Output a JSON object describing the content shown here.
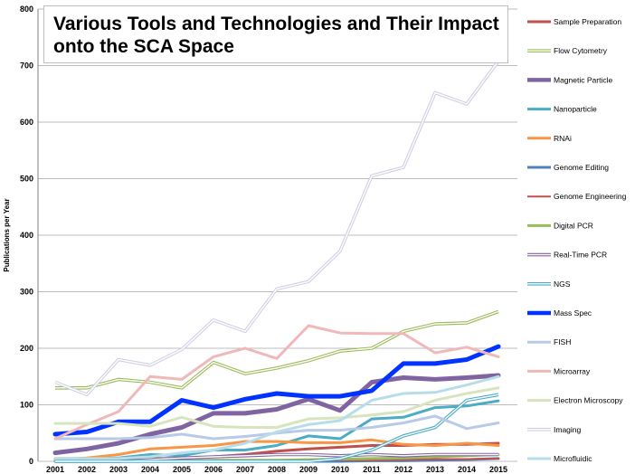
{
  "chart_data": {
    "type": "line",
    "title": "Various Tools and Technologies and Their Impact onto the SCA Space",
    "xlabel": "",
    "ylabel": "Publications per Year",
    "ylim": [
      0,
      800
    ],
    "yticks": [
      0,
      100,
      200,
      300,
      400,
      500,
      600,
      700,
      800
    ],
    "x": [
      "2001",
      "2002",
      "2003",
      "2004",
      "2005",
      "2006",
      "2007",
      "2008",
      "2009",
      "2010",
      "2011",
      "2012",
      "2013",
      "2014",
      "2015"
    ],
    "grid": true,
    "legend_position": "right",
    "series": [
      {
        "name": "Sample Preparation",
        "color": "#c0504d",
        "style": "solid",
        "width": 3,
        "values": [
          2,
          2,
          3,
          5,
          5,
          8,
          12,
          18,
          22,
          25,
          28,
          28,
          30,
          30,
          32
        ]
      },
      {
        "name": "Flow Cytometry",
        "color": "#9bbb59",
        "style": "double",
        "width": 1.2,
        "values": [
          130,
          130,
          145,
          140,
          130,
          175,
          155,
          165,
          178,
          195,
          200,
          230,
          243,
          245,
          265
        ]
      },
      {
        "name": "Magnetic Particle",
        "color": "#8064a2",
        "style": "solid",
        "width": 5,
        "values": [
          15,
          22,
          32,
          48,
          60,
          85,
          85,
          92,
          110,
          90,
          140,
          148,
          145,
          148,
          152
        ]
      },
      {
        "name": "Nanoparticle",
        "color": "#4bacc6",
        "style": "solid",
        "width": 3,
        "values": [
          5,
          5,
          6,
          12,
          10,
          20,
          20,
          28,
          45,
          40,
          75,
          78,
          95,
          98,
          107
        ]
      },
      {
        "name": "RNAi",
        "color": "#f79646",
        "style": "solid",
        "width": 3,
        "values": [
          3,
          6,
          12,
          22,
          25,
          28,
          35,
          35,
          33,
          33,
          38,
          30,
          28,
          32,
          28
        ]
      },
      {
        "name": "Genome Editing",
        "color": "#4f81bd",
        "style": "solid",
        "width": 3,
        "values": [
          0,
          0,
          0,
          0,
          0,
          0,
          0,
          0,
          0,
          0,
          1,
          1,
          2,
          3,
          5
        ]
      },
      {
        "name": "Genome Engineering",
        "color": "#c0504d",
        "style": "solid",
        "width": 2,
        "values": [
          0,
          0,
          0,
          1,
          1,
          1,
          1,
          1,
          1,
          2,
          2,
          3,
          4,
          4,
          5
        ]
      },
      {
        "name": "Digital PCR",
        "color": "#9bbb59",
        "style": "solid",
        "width": 3,
        "values": [
          1,
          1,
          1,
          1,
          1,
          2,
          2,
          2,
          3,
          4,
          5,
          6,
          8,
          10,
          12
        ]
      },
      {
        "name": "Real-Time PCR",
        "color": "#8064a2",
        "style": "double",
        "width": 1.5,
        "values": [
          0,
          0,
          0,
          3,
          6,
          8,
          10,
          12,
          12,
          10,
          12,
          10,
          12,
          12,
          12
        ]
      },
      {
        "name": "NGS",
        "color": "#4bacc6",
        "style": "double",
        "width": 1.2,
        "values": [
          0,
          0,
          0,
          0,
          0,
          0,
          0,
          0,
          0,
          5,
          20,
          45,
          60,
          108,
          118
        ]
      },
      {
        "name": "Mass Spec",
        "color": "#0033ff",
        "style": "solid",
        "width": 5,
        "values": [
          48,
          52,
          70,
          70,
          108,
          95,
          110,
          120,
          115,
          115,
          125,
          173,
          173,
          180,
          203
        ]
      },
      {
        "name": "FISH",
        "color": "#b9c9e8",
        "style": "solid",
        "width": 3,
        "values": [
          40,
          40,
          40,
          42,
          48,
          40,
          44,
          50,
          55,
          55,
          60,
          68,
          80,
          58,
          68
        ]
      },
      {
        "name": "Microarray",
        "color": "#f0b8b8",
        "style": "solid",
        "width": 3,
        "values": [
          40,
          65,
          88,
          150,
          145,
          185,
          200,
          182,
          240,
          227,
          226,
          226,
          192,
          202,
          185
        ]
      },
      {
        "name": "Electron Microscopy",
        "color": "#d7e4bd",
        "style": "solid",
        "width": 3,
        "values": [
          67,
          67,
          67,
          62,
          78,
          62,
          60,
          60,
          75,
          77,
          82,
          88,
          108,
          120,
          130
        ]
      },
      {
        "name": "Imaging",
        "color": "#cfd0e6",
        "style": "double",
        "width": 1.2,
        "values": [
          140,
          118,
          180,
          170,
          198,
          250,
          230,
          305,
          318,
          372,
          505,
          520,
          652,
          632,
          708
        ]
      },
      {
        "name": "Microfluidic",
        "color": "#b7dee8",
        "style": "solid",
        "width": 3,
        "values": [
          5,
          5,
          5,
          8,
          15,
          20,
          32,
          52,
          65,
          72,
          108,
          120,
          122,
          135,
          150
        ]
      }
    ]
  }
}
